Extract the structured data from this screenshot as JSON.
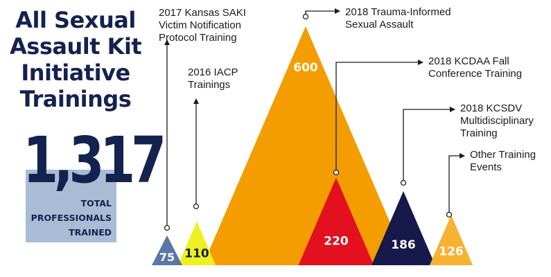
{
  "title_lines": [
    "All Sexual",
    "Assault Kit",
    "Initiative",
    "Trainings"
  ],
  "total": {
    "value": "1,317",
    "label_lines": [
      "TOTAL",
      "PROFESSIONALS",
      "TRAINED"
    ]
  },
  "colors": {
    "navy": "#14224f",
    "light_blue_box": "#a8bcd6"
  },
  "chart_data": {
    "type": "area",
    "series": [
      {
        "name": "2017 Kansas SAKI Victim Notification Protocol Training",
        "value": 75,
        "label": "75",
        "color": "#5a77a6",
        "label_color": "#ffffff"
      },
      {
        "name": "2016 IACP Trainings",
        "value": 110,
        "label": "110",
        "color": "#eef020",
        "label_color": "#14224f"
      },
      {
        "name": "2018 Trauma-Informed Sexual Assault",
        "value": 600,
        "label": "600",
        "color": "#f49d00",
        "label_color": "#ffffff"
      },
      {
        "name": "2018 KCDAA Fall Conference Training",
        "value": 220,
        "label": "220",
        "color": "#e3101f",
        "label_color": "#ffffff"
      },
      {
        "name": "2018 KCSDV Multidisciplinary Training",
        "value": 186,
        "label": "186",
        "color": "#16194a",
        "label_color": "#ffffff"
      },
      {
        "name": "Other Training Events",
        "value": 126,
        "label": "126",
        "color": "#f7b231",
        "label_color": "#ffffff"
      }
    ],
    "callouts": [
      {
        "lines": [
          "2017 Kansas SAKI",
          "Victim Notification",
          "Protocol Training"
        ]
      },
      {
        "lines": [
          "2016 IACP",
          "Trainings"
        ]
      },
      {
        "lines": [
          "2018 Trauma-Informed",
          "Sexual Assault"
        ]
      },
      {
        "lines": [
          "2018 KCDAA Fall",
          "Conference Training"
        ]
      },
      {
        "lines": [
          "2018 KCSDV",
          "Multidisciplinary",
          "Training"
        ]
      },
      {
        "lines": [
          "Other Training",
          "Events"
        ]
      }
    ]
  }
}
